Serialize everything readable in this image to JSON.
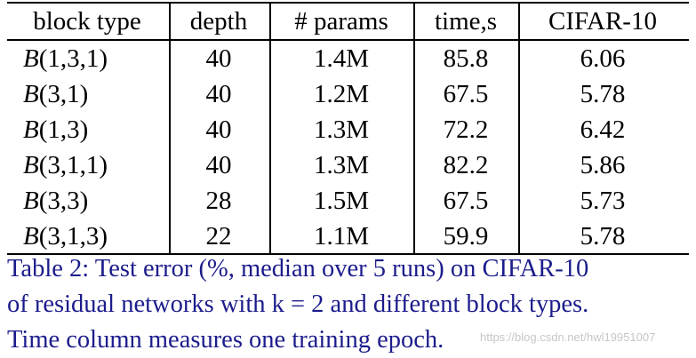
{
  "table": {
    "header": [
      "block type",
      "depth",
      "# params",
      "time,s",
      "CIFAR-10"
    ],
    "rows": [
      [
        "B(1,3,1)",
        "40",
        "1.4M",
        "85.8",
        "6.06"
      ],
      [
        "B(3,1)",
        "40",
        "1.2M",
        "67.5",
        "5.78"
      ],
      [
        "B(1,3)",
        "40",
        "1.3M",
        "72.2",
        "6.42"
      ],
      [
        "B(3,1,1)",
        "40",
        "1.3M",
        "82.2",
        "5.86"
      ],
      [
        "B(3,3)",
        "28",
        "1.5M",
        "67.5",
        "5.73"
      ],
      [
        "B(3,1,3)",
        "22",
        "1.1M",
        "59.9",
        "5.78"
      ]
    ]
  },
  "caption": [
    "Table 2: Test error (%, median over 5 runs) on CIFAR-10",
    "of residual networks with k = 2 and different block types.",
    "Time column measures one training epoch."
  ],
  "watermark": "https://blog.csdn.net/hwl19951007"
}
